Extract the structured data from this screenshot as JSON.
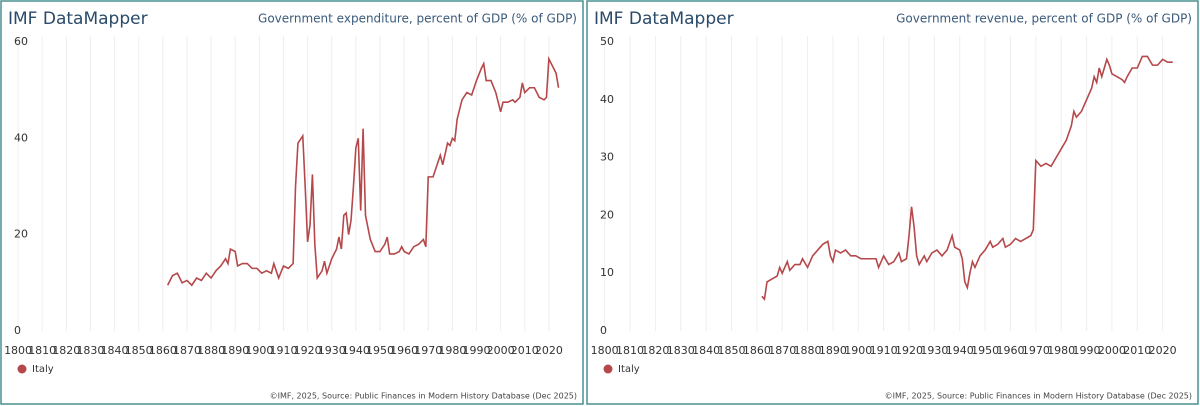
{
  "chart_data": [
    {
      "type": "line",
      "brand": "IMF DataMapper",
      "title": "Government expenditure, percent of GDP (% of GDP)",
      "source": "©IMF, 2025, Source: Public Finances in Modern History Database (Dec 2025)",
      "x": [
        1862,
        1864,
        1866,
        1868,
        1870,
        1872,
        1874,
        1876,
        1878,
        1880,
        1882,
        1884,
        1886,
        1887,
        1888,
        1890,
        1891,
        1893,
        1895,
        1897,
        1899,
        1901,
        1903,
        1905,
        1906,
        1908,
        1910,
        1912,
        1914,
        1915,
        1916,
        1918,
        1919,
        1920,
        1921,
        1922,
        1923,
        1924,
        1926,
        1927,
        1928,
        1930,
        1932,
        1933,
        1934,
        1935,
        1936,
        1937,
        1938,
        1939,
        1940,
        1941,
        1942,
        1943,
        1944,
        1946,
        1948,
        1950,
        1952,
        1953,
        1954,
        1956,
        1958,
        1959,
        1960,
        1962,
        1964,
        1966,
        1968,
        1969,
        1970,
        1972,
        1974,
        1975,
        1976,
        1978,
        1979,
        1980,
        1981,
        1982,
        1984,
        1986,
        1988,
        1990,
        1992,
        1993,
        1994,
        1996,
        1998,
        2000,
        2001,
        2003,
        2005,
        2006,
        2008,
        2009,
        2010,
        2012,
        2014,
        2016,
        2018,
        2019,
        2020,
        2021,
        2022,
        2023,
        2024
      ],
      "series": [
        {
          "name": "Italy",
          "color": "#b5484b",
          "values": [
            9.5,
            11.5,
            12,
            10,
            10.5,
            9.5,
            11,
            10.5,
            12,
            11,
            12.5,
            13.5,
            15,
            14,
            17,
            16.5,
            13.5,
            14,
            14,
            13,
            13,
            12,
            12.5,
            12,
            14,
            11,
            13.5,
            13,
            14,
            30,
            39,
            40.5,
            30,
            18.5,
            22,
            32.5,
            18,
            11,
            12.5,
            14.5,
            12,
            15,
            17,
            19.5,
            17,
            24,
            24.5,
            20,
            23,
            30,
            38,
            40,
            25,
            42,
            24,
            19,
            16.5,
            16.5,
            18,
            19.5,
            16,
            16,
            16.5,
            17.5,
            16.5,
            16,
            17.5,
            18,
            19,
            17.5,
            32,
            32,
            35,
            36.5,
            34.5,
            39,
            38.5,
            40,
            39.5,
            44,
            48,
            49.5,
            49,
            52,
            54.5,
            55.5,
            52,
            52,
            49.5,
            45.5,
            47.5,
            47.5,
            48,
            47.5,
            48.5,
            51.5,
            49.5,
            50.5,
            50.5,
            48.5,
            48,
            48.5,
            56.5,
            55.5,
            54.5,
            53.5,
            50.5
          ]
        }
      ],
      "xlim": [
        1795,
        2030
      ],
      "xticks": [
        1800,
        1810,
        1820,
        1830,
        1840,
        1850,
        1860,
        1870,
        1880,
        1890,
        1900,
        1910,
        1920,
        1930,
        1940,
        1950,
        1960,
        1970,
        1980,
        1990,
        2000,
        2010,
        2020
      ],
      "ylim": [
        0,
        60
      ],
      "yticks": [
        0,
        20,
        40,
        60
      ]
    },
    {
      "type": "line",
      "brand": "IMF DataMapper",
      "title": "Government revenue, percent of GDP (% of GDP)",
      "source": "©IMF, 2025, Source: Public Finances in Modern History Database (Dec 2025)",
      "x": [
        1862,
        1863,
        1864,
        1866,
        1868,
        1869,
        1870,
        1872,
        1873,
        1875,
        1877,
        1878,
        1880,
        1882,
        1884,
        1886,
        1888,
        1889,
        1890,
        1891,
        1893,
        1895,
        1897,
        1899,
        1901,
        1903,
        1905,
        1907,
        1908,
        1910,
        1912,
        1914,
        1916,
        1917,
        1919,
        1920,
        1921,
        1922,
        1923,
        1924,
        1926,
        1927,
        1929,
        1931,
        1933,
        1935,
        1937,
        1938,
        1940,
        1941,
        1942,
        1943,
        1944,
        1945,
        1946,
        1948,
        1950,
        1952,
        1953,
        1955,
        1957,
        1958,
        1960,
        1962,
        1964,
        1966,
        1968,
        1969,
        1970,
        1972,
        1974,
        1976,
        1978,
        1980,
        1982,
        1984,
        1985,
        1986,
        1988,
        1990,
        1992,
        1993,
        1994,
        1995,
        1996,
        1997,
        1998,
        1999,
        2000,
        2002,
        2004,
        2005,
        2006,
        2008,
        2009,
        2010,
        2012,
        2014,
        2016,
        2018,
        2020,
        2022,
        2024
      ],
      "series": [
        {
          "name": "Italy",
          "color": "#b5484b",
          "values": [
            6,
            5.5,
            8.5,
            9,
            9.5,
            11,
            10,
            12,
            10.5,
            11.5,
            11.5,
            12.5,
            11,
            13,
            14,
            15,
            15.5,
            13,
            12,
            14,
            13.5,
            14,
            13,
            13,
            12.5,
            12.5,
            12.5,
            12.5,
            11,
            13,
            11.5,
            12,
            13.5,
            12,
            12.5,
            16.5,
            21.5,
            18,
            13,
            11.5,
            13,
            12,
            13.5,
            14,
            13,
            14,
            16.5,
            14.5,
            14,
            12.5,
            8.5,
            7.5,
            10,
            12,
            11,
            13,
            14,
            15.5,
            14.5,
            15,
            16,
            14.5,
            15,
            16,
            15.5,
            16,
            16.5,
            17.5,
            29.5,
            28.5,
            29,
            28.5,
            30,
            31.5,
            33,
            35.5,
            38,
            37,
            38,
            40,
            42,
            44,
            43,
            45.5,
            44,
            45.5,
            47,
            46,
            44.5,
            44,
            43.5,
            43,
            44,
            45.5,
            45.5,
            45.5,
            47.5,
            47.5,
            46,
            46,
            47,
            46.5,
            46.5
          ]
        }
      ],
      "xlim": [
        1795,
        2030
      ],
      "xticks": [
        1800,
        1810,
        1820,
        1830,
        1840,
        1850,
        1860,
        1870,
        1880,
        1890,
        1900,
        1910,
        1920,
        1930,
        1940,
        1950,
        1960,
        1970,
        1980,
        1990,
        2000,
        2010,
        2020
      ],
      "ylim": [
        0,
        50
      ],
      "yticks": [
        0,
        10,
        20,
        30,
        40,
        50
      ]
    }
  ]
}
